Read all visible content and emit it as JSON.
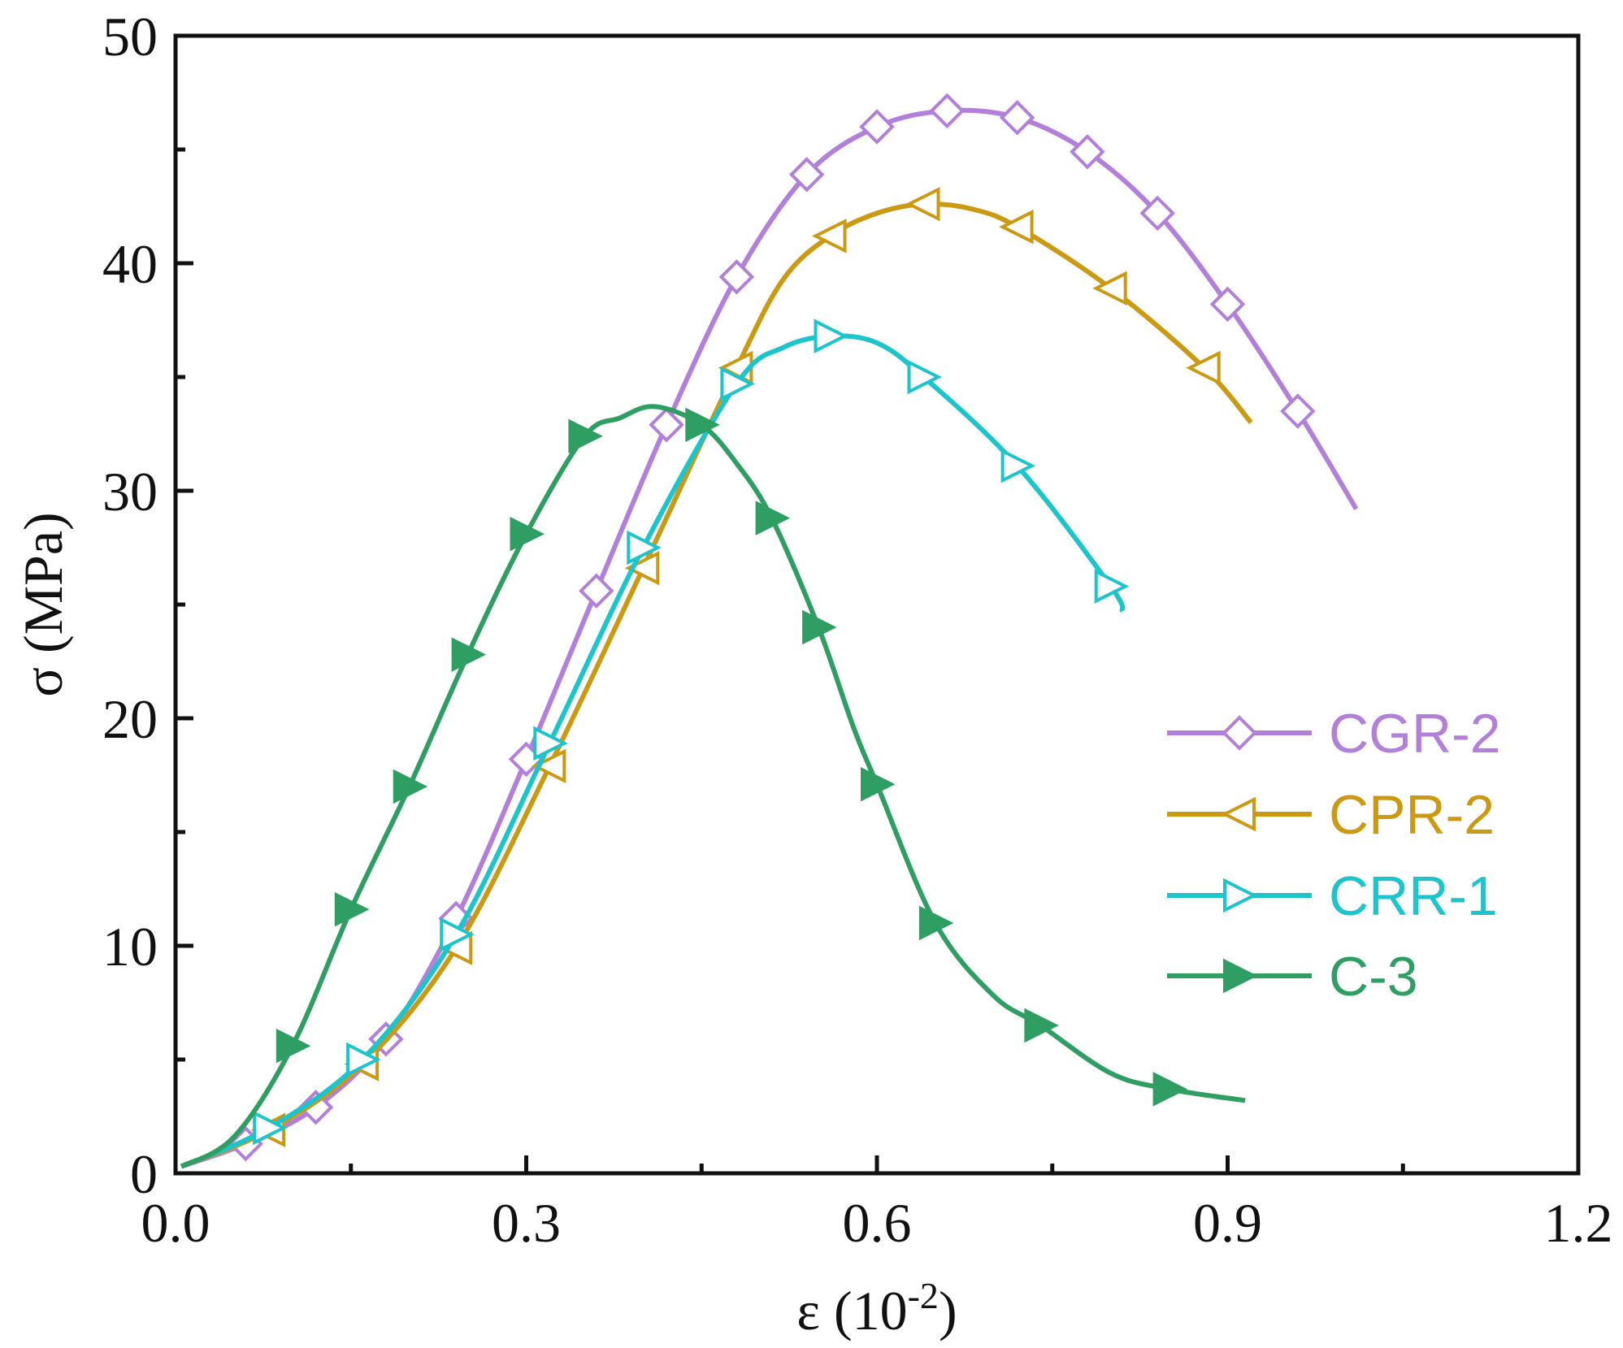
{
  "chart_data": {
    "type": "line",
    "title": "",
    "xlabel": "ε (10",
    "xlabel_sup": "-2",
    "xlabel_close": ")",
    "ylabel": "σ (MPa)",
    "xlim": [
      0.0,
      1.2
    ],
    "ylim": [
      0,
      50
    ],
    "x_ticks": [
      0.0,
      0.3,
      0.6,
      0.9,
      1.2
    ],
    "x_tick_labels": [
      "0.0",
      "0.3",
      "0.6",
      "0.9",
      "1.2"
    ],
    "y_ticks": [
      0,
      10,
      20,
      30,
      40,
      50
    ],
    "y_tick_labels": [
      "0",
      "10",
      "20",
      "30",
      "40",
      "50"
    ],
    "grid": false,
    "legend_position": "center-right",
    "series": [
      {
        "name": "CGR-2",
        "color": "#b27fdb",
        "marker": "diamond-open",
        "x": [
          0.005,
          0.06,
          0.12,
          0.18,
          0.24,
          0.3,
          0.36,
          0.42,
          0.48,
          0.54,
          0.6,
          0.66,
          0.72,
          0.78,
          0.84,
          0.9,
          0.96,
          1.01
        ],
        "y": [
          0.3,
          1.3,
          2.9,
          5.9,
          11.2,
          18.2,
          25.6,
          32.9,
          39.4,
          43.9,
          46.0,
          46.7,
          46.4,
          44.9,
          42.2,
          38.2,
          33.5,
          29.2
        ],
        "marker_x": [
          0.06,
          0.12,
          0.18,
          0.24,
          0.3,
          0.36,
          0.42,
          0.48,
          0.54,
          0.6,
          0.66,
          0.72,
          0.78,
          0.84,
          0.9,
          0.96
        ],
        "marker_y": [
          1.3,
          2.9,
          5.9,
          11.2,
          18.2,
          25.6,
          32.9,
          39.4,
          43.9,
          46.0,
          46.7,
          46.4,
          44.9,
          42.2,
          38.2,
          33.5
        ]
      },
      {
        "name": "CPR-2",
        "color": "#cc9a12",
        "marker": "triangle-left-open",
        "x": [
          0.005,
          0.08,
          0.16,
          0.24,
          0.32,
          0.4,
          0.48,
          0.52,
          0.56,
          0.6,
          0.64,
          0.68,
          0.72,
          0.8,
          0.88,
          0.92
        ],
        "y": [
          0.3,
          1.9,
          4.8,
          9.9,
          17.9,
          26.6,
          35.4,
          39.3,
          41.2,
          42.2,
          42.6,
          42.4,
          41.6,
          38.9,
          35.4,
          33.0
        ],
        "marker_x": [
          0.08,
          0.16,
          0.24,
          0.32,
          0.4,
          0.48,
          0.56,
          0.64,
          0.72,
          0.8,
          0.88
        ],
        "marker_y": [
          1.9,
          4.8,
          9.9,
          17.9,
          26.6,
          35.4,
          41.2,
          42.6,
          41.6,
          38.9,
          35.4
        ]
      },
      {
        "name": "CRR-1",
        "color": "#1cc4cc",
        "marker": "triangle-right-open",
        "x": [
          0.005,
          0.08,
          0.16,
          0.24,
          0.32,
          0.4,
          0.48,
          0.52,
          0.56,
          0.6,
          0.64,
          0.72,
          0.8,
          0.81
        ],
        "y": [
          0.3,
          2.0,
          5.0,
          10.5,
          18.9,
          27.5,
          34.7,
          36.3,
          36.8,
          36.5,
          35.0,
          31.1,
          25.8,
          24.7
        ],
        "marker_x": [
          0.08,
          0.16,
          0.24,
          0.32,
          0.4,
          0.48,
          0.56,
          0.64,
          0.72,
          0.8
        ],
        "marker_y": [
          2.0,
          5.0,
          10.5,
          18.9,
          27.5,
          34.7,
          36.8,
          35.0,
          31.1,
          25.8
        ]
      },
      {
        "name": "C-3",
        "color": "#2e9e62",
        "marker": "triangle-right-filled",
        "x": [
          0.005,
          0.05,
          0.1,
          0.15,
          0.2,
          0.25,
          0.3,
          0.35,
          0.38,
          0.41,
          0.45,
          0.48,
          0.51,
          0.55,
          0.58,
          0.6,
          0.65,
          0.7,
          0.74,
          0.8,
          0.85,
          0.915
        ],
        "y": [
          0.3,
          1.6,
          5.6,
          11.6,
          17.0,
          22.8,
          28.1,
          32.4,
          33.2,
          33.7,
          32.9,
          31.2,
          28.8,
          24.0,
          19.6,
          17.1,
          11.0,
          7.8,
          6.5,
          4.4,
          3.7,
          3.2
        ],
        "marker_x": [
          0.1,
          0.15,
          0.2,
          0.25,
          0.3,
          0.35,
          0.45,
          0.51,
          0.55,
          0.6,
          0.65,
          0.74,
          0.85
        ],
        "marker_y": [
          5.6,
          11.6,
          17.0,
          22.8,
          28.1,
          32.4,
          32.9,
          28.8,
          24.0,
          17.1,
          11.0,
          6.5,
          3.7
        ]
      }
    ]
  }
}
